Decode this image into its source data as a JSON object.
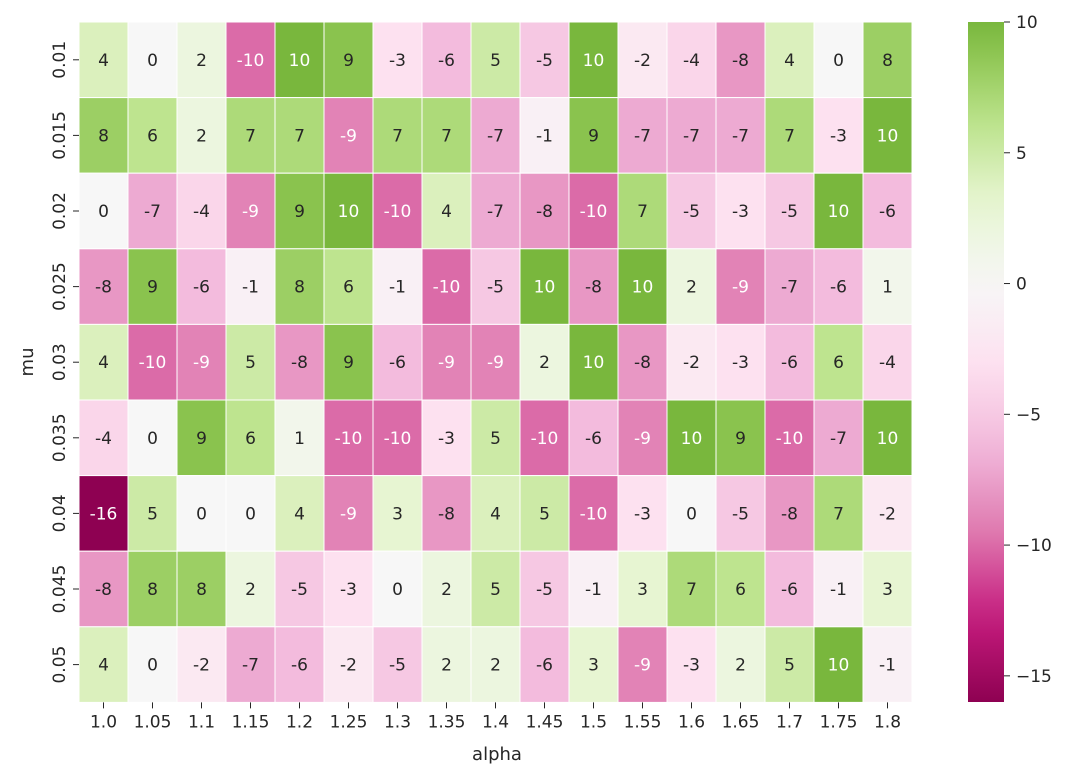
{
  "chart_data": {
    "type": "heatmap",
    "xlabel": "alpha",
    "ylabel": "mu",
    "x_categories": [
      "1.0",
      "1.05",
      "1.1",
      "1.15",
      "1.2",
      "1.25",
      "1.3",
      "1.35",
      "1.4",
      "1.45",
      "1.5",
      "1.55",
      "1.6",
      "1.65",
      "1.7",
      "1.75",
      "1.8"
    ],
    "y_categories": [
      "0.01",
      "0.015",
      "0.02",
      "0.025",
      "0.03",
      "0.035",
      "0.04",
      "0.045",
      "0.05"
    ],
    "values": [
      [
        4,
        0,
        2,
        -10,
        10,
        9,
        -3,
        -6,
        5,
        -5,
        10,
        -2,
        -4,
        -8,
        4,
        0,
        8
      ],
      [
        8,
        6,
        2,
        7,
        7,
        -9,
        7,
        7,
        -7,
        -1,
        9,
        -7,
        -7,
        -7,
        7,
        -3,
        10
      ],
      [
        0,
        -7,
        -4,
        -9,
        9,
        10,
        -10,
        4,
        -7,
        -8,
        -10,
        7,
        -5,
        -3,
        -5,
        10,
        -6
      ],
      [
        -8,
        9,
        -6,
        -1,
        8,
        6,
        -1,
        -10,
        -5,
        10,
        -8,
        10,
        2,
        -9,
        -7,
        -6,
        1
      ],
      [
        4,
        -10,
        -9,
        5,
        -8,
        9,
        -6,
        -9,
        -9,
        2,
        10,
        -8,
        -2,
        -3,
        -6,
        6,
        -4
      ],
      [
        -4,
        0,
        9,
        6,
        1,
        -10,
        -10,
        -3,
        5,
        -10,
        -6,
        -9,
        10,
        9,
        -10,
        -7,
        10
      ],
      [
        -16,
        5,
        0,
        0,
        4,
        -9,
        3,
        -8,
        4,
        5,
        -10,
        -3,
        0,
        -5,
        -8,
        7,
        -2
      ],
      [
        -8,
        8,
        8,
        2,
        -5,
        -3,
        0,
        2,
        5,
        -5,
        -1,
        3,
        7,
        6,
        -6,
        -1,
        3
      ],
      [
        4,
        0,
        -2,
        -7,
        -6,
        -2,
        -5,
        2,
        2,
        -6,
        3,
        -9,
        -3,
        2,
        5,
        10,
        -1
      ]
    ],
    "colorbar": {
      "min": -16,
      "max": 10,
      "center": 0,
      "colormap": "PiYG",
      "ticks": [
        -15,
        -10,
        -5,
        0,
        5,
        10
      ],
      "tick_labels": [
        "−15",
        "−10",
        "−5",
        "0",
        "5",
        "10"
      ]
    },
    "cell_annotations": true,
    "annotation_color_dark": "#262626",
    "annotation_color_light": "#ffffff",
    "cell_border_color": "#ffffff"
  }
}
